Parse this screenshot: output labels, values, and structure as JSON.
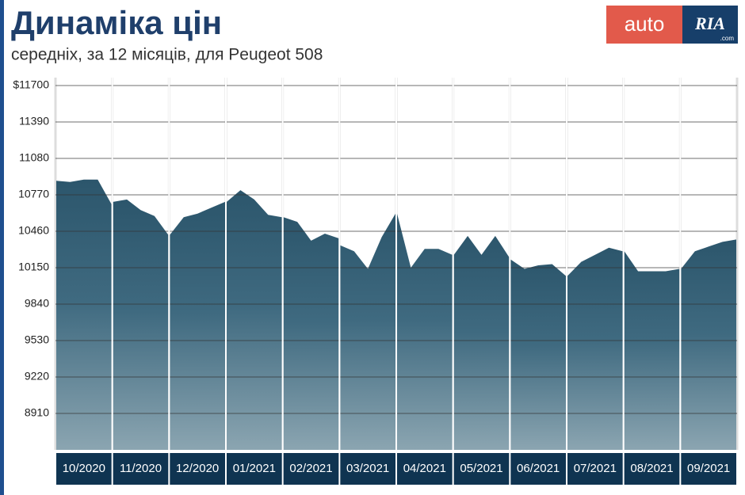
{
  "chart_data": {
    "type": "area",
    "title": "Динаміка цін",
    "subtitle": "середніх, за 12 місяців, для Peugeot 508",
    "categories": [
      "10/2020",
      "11/2020",
      "12/2020",
      "01/2021",
      "02/2021",
      "03/2021",
      "04/2021",
      "05/2021",
      "06/2021",
      "07/2021",
      "08/2021",
      "09/2021"
    ],
    "values": [
      [
        10890,
        10880,
        10900,
        10900,
        10690
      ],
      [
        10710,
        10730,
        10640,
        10590,
        10430
      ],
      [
        10430,
        10580,
        10610,
        10660,
        10710
      ],
      [
        10710,
        10810,
        10730,
        10600,
        10580
      ],
      [
        10580,
        10540,
        10380,
        10440,
        10400
      ],
      [
        10340,
        10290,
        10140,
        10410,
        10610
      ],
      [
        10610,
        10150,
        10310,
        10310,
        10260
      ],
      [
        10260,
        10420,
        10260,
        10420,
        10240
      ],
      [
        10220,
        10140,
        10170,
        10180,
        10080
      ],
      [
        10080,
        10200,
        10260,
        10320,
        10290
      ],
      [
        10290,
        10120,
        10120,
        10120,
        10140
      ],
      [
        10140,
        10290,
        10330,
        10370,
        10390
      ]
    ],
    "color": "#2f5a70",
    "ylim": [
      8600,
      11700
    ],
    "yticks": [
      {
        "value": 11700,
        "label": "$11700"
      },
      11390,
      11080,
      10770,
      10460,
      10150,
      9840,
      9530,
      9220,
      8910
    ],
    "grid": true
  },
  "logo": {
    "left": "auto",
    "right": "RIA",
    "suffix": ".com"
  }
}
